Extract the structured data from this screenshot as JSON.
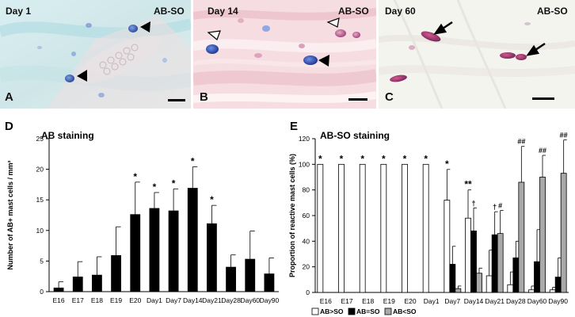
{
  "micrographs": [
    {
      "letter": "A",
      "day": "Day 1",
      "stain": "AB-SO"
    },
    {
      "letter": "B",
      "day": "Day 14",
      "stain": "AB-SO"
    },
    {
      "letter": "C",
      "day": "Day 60",
      "stain": "AB-SO"
    }
  ],
  "colors": {
    "ab_blue": "#3d5fb0",
    "so_red": "#c33a6a",
    "tissue_pink": "#f2d6dc",
    "bg_cyan": "#d6ebec"
  },
  "chart_data": [
    {
      "panel_letter": "D",
      "type": "bar",
      "title": "AB staining",
      "ylabel": "Number of AB+ mast cells / mm²",
      "xlabel": "",
      "ylim": [
        0,
        25
      ],
      "yticks": [
        "0",
        "5",
        "10",
        "15",
        "20",
        "25"
      ],
      "categories": [
        "E16",
        "E17",
        "E18",
        "E19",
        "E20",
        "Day1",
        "Day7",
        "Day14",
        "Day21",
        "Day28",
        "Day60",
        "Day90"
      ],
      "values": [
        0.6,
        2.4,
        2.7,
        5.9,
        12.6,
        13.6,
        13.2,
        16.9,
        11.1,
        4.0,
        5.3,
        2.9
      ],
      "errors": [
        1.0,
        2.5,
        3.0,
        4.7,
        5.3,
        2.6,
        3.6,
        3.5,
        3.0,
        2.0,
        4.6,
        2.6
      ],
      "annotations": [
        "",
        "",
        "",
        "",
        "*",
        "*",
        "*",
        "*",
        "*",
        "",
        "",
        ""
      ],
      "grid": false,
      "legend": "none"
    },
    {
      "panel_letter": "E",
      "type": "bar",
      "title": "AB-SO staining",
      "ylabel": "Proportion of reactive mast cells (%)",
      "xlabel": "",
      "ylim": [
        0,
        120
      ],
      "yticks": [
        "0",
        "20",
        "40",
        "60",
        "80",
        "100",
        "120"
      ],
      "categories": [
        "E16",
        "E17",
        "E18",
        "E19",
        "E20",
        "Day1",
        "Day7",
        "Day14",
        "Day21",
        "Day28",
        "Day60",
        "Day90"
      ],
      "series": [
        {
          "name": "AB>SO",
          "values": [
            100,
            100,
            100,
            100,
            100,
            100,
            72,
            58,
            13,
            6,
            2,
            2
          ],
          "errors": [
            0,
            0,
            0,
            0,
            0,
            0,
            24,
            22,
            20,
            10,
            3,
            2
          ],
          "annotations": [
            "*",
            "*",
            "*",
            "*",
            "*",
            "*",
            "*",
            "**",
            "",
            "",
            "",
            ""
          ]
        },
        {
          "name": "AB=SO",
          "values": [
            0,
            0,
            0,
            0,
            0,
            0,
            22,
            48,
            45,
            27,
            24,
            12
          ],
          "errors": [
            0,
            0,
            0,
            0,
            0,
            0,
            14,
            18,
            18,
            13,
            25,
            15
          ],
          "annotations": [
            "",
            "",
            "",
            "",
            "",
            "",
            "",
            "†",
            "†",
            "",
            "",
            ""
          ]
        },
        {
          "name": "AB<SO",
          "values": [
            0,
            0,
            0,
            0,
            0,
            0,
            3,
            15,
            46,
            86,
            90,
            93
          ],
          "errors": [
            0,
            0,
            0,
            0,
            0,
            0,
            2,
            4,
            18,
            28,
            17,
            26
          ],
          "annotations": [
            "",
            "",
            "",
            "",
            "",
            "",
            "",
            "",
            "#",
            "##",
            "##",
            "##"
          ]
        }
      ],
      "series_colors": [
        "#ffffff",
        "#000000",
        "#a9a9a9"
      ],
      "grid": false,
      "legend": "bottom-left"
    }
  ]
}
